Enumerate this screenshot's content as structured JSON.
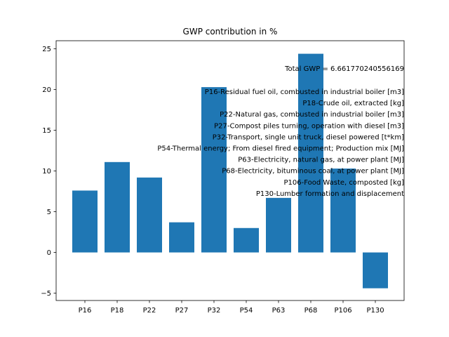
{
  "chart_data": {
    "type": "bar",
    "title": "GWP contribution in %",
    "xlabel": "",
    "ylabel": "",
    "categories": [
      "P16",
      "P18",
      "P22",
      "P27",
      "P32",
      "P54",
      "P63",
      "P68",
      "P106",
      "P130"
    ],
    "values": [
      7.6,
      11.1,
      9.2,
      3.7,
      20.3,
      3.0,
      6.7,
      24.4,
      10.3,
      -4.4
    ],
    "ylim": [
      -5.9,
      26.0
    ],
    "yticks": [
      -5,
      0,
      5,
      10,
      15,
      20,
      25
    ],
    "grid": false,
    "bar_color": "#1f77b4",
    "annotations": {
      "total": "Total GWP = 6.661770240556169",
      "lines": [
        "P16-Residual fuel oil, combusted in industrial boiler [m3]",
        "P18-Crude oil, extracted [kg]",
        "P22-Natural gas, combusted in industrial boiler [m3]",
        "P27-Compost piles turning, operation with diesel [m3]",
        "P32-Transport, single unit truck, diesel powered [t*km]",
        "P54-Thermal energy; From diesel fired equipment; Production mix [MJ]",
        "P63-Electricity, natural gas, at power plant [MJ]",
        "P68-Electricity, bituminous coal, at power plant [MJ]",
        "P106-Food Waste, composted [kg]",
        "P130-Lumber formation and displacement"
      ]
    }
  }
}
